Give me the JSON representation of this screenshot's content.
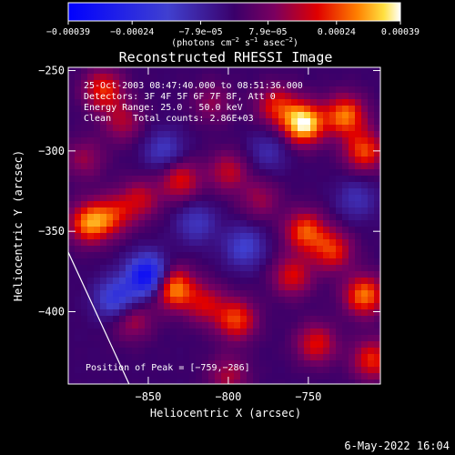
{
  "chart_data": {
    "type": "heatmap",
    "title": "Reconstructed RHESSI Image",
    "xlabel": "Heliocentric X (arcsec)",
    "ylabel": "Heliocentric Y (arcsec)",
    "xlim": [
      -900,
      -705
    ],
    "ylim": [
      -445,
      -248
    ],
    "x_ticks": [
      {
        "value": -850,
        "label": "−850"
      },
      {
        "value": -800,
        "label": "−800"
      },
      {
        "value": -750,
        "label": "−750"
      }
    ],
    "y_ticks": [
      {
        "value": -250,
        "label": "−250"
      },
      {
        "value": -300,
        "label": "−300"
      },
      {
        "value": -350,
        "label": "−350"
      },
      {
        "value": -400,
        "label": "−400"
      }
    ],
    "colorbar": {
      "range": [
        -0.00039,
        0.00039
      ],
      "ticks": [
        {
          "value": -0.00039,
          "label": "−0.00039"
        },
        {
          "value": -0.00024,
          "label": "−0.00024"
        },
        {
          "value": -7.9e-05,
          "label": "−7.9e−05"
        },
        {
          "value": 7.9e-05,
          "label": "7.9e−05"
        },
        {
          "value": 0.00024,
          "label": "0.00024"
        },
        {
          "value": 0.00039,
          "label": "0.00039"
        }
      ],
      "unit_label": {
        "base": "(photons cm",
        "sup1": "−2",
        "mid1": " s",
        "sup2": "−1",
        "mid2": " asec",
        "sup3": "−2",
        "end": ")"
      }
    },
    "info_lines": [
      "25-Oct-2003 08:47:40.000 to 08:51:36.000",
      "Detectors: 3F 4F 5F 6F 7F 8F, Att 0",
      "Energy Range: 25.0 - 50.0 keV",
      "Clean    Total counts: 2.86E+03"
    ],
    "peak_label": "Position of Peak = [−759,−286]",
    "peak": [
      -759,
      -286
    ],
    "limb_line": [
      [
        -900,
        -363
      ],
      [
        -862,
        -445
      ]
    ],
    "sources": [
      {
        "x": -753,
        "y": -283,
        "value": 0.00039
      },
      {
        "x": -727,
        "y": -278,
        "value": 0.00028
      },
      {
        "x": -715,
        "y": -300,
        "value": 0.00024
      },
      {
        "x": -770,
        "y": -272,
        "value": 0.0002
      },
      {
        "x": -878,
        "y": -262,
        "value": 0.00022
      },
      {
        "x": -866,
        "y": -282,
        "value": 0.00014
      },
      {
        "x": -887,
        "y": -345,
        "value": 0.00028
      },
      {
        "x": -872,
        "y": -340,
        "value": 0.00018
      },
      {
        "x": -830,
        "y": -318,
        "value": 0.0002
      },
      {
        "x": -800,
        "y": -313,
        "value": 0.00016
      },
      {
        "x": -855,
        "y": -330,
        "value": 0.00016
      },
      {
        "x": -835,
        "y": -385,
        "value": 0.00033
      },
      {
        "x": -815,
        "y": -395,
        "value": 0.00017
      },
      {
        "x": -860,
        "y": -405,
        "value": 0.00015
      },
      {
        "x": -795,
        "y": -405,
        "value": 0.00024
      },
      {
        "x": -752,
        "y": -350,
        "value": 0.00025
      },
      {
        "x": -735,
        "y": -362,
        "value": 0.00022
      },
      {
        "x": -760,
        "y": -378,
        "value": 0.00019
      },
      {
        "x": -715,
        "y": -390,
        "value": 0.00028
      },
      {
        "x": -745,
        "y": -420,
        "value": 0.0002
      },
      {
        "x": -710,
        "y": -430,
        "value": 0.00022
      },
      {
        "x": -800,
        "y": -440,
        "value": 0.00014
      },
      {
        "x": -780,
        "y": -330,
        "value": 0.00012
      },
      {
        "x": -810,
        "y": -270,
        "value": 0.00011
      },
      {
        "x": -890,
        "y": -305,
        "value": 0.00012
      },
      {
        "x": -850,
        "y": -378,
        "value": -0.00038
      },
      {
        "x": -870,
        "y": -392,
        "value": -0.00022
      },
      {
        "x": -840,
        "y": -300,
        "value": -0.00014
      },
      {
        "x": -790,
        "y": -360,
        "value": -0.00016
      },
      {
        "x": -820,
        "y": -345,
        "value": -0.00013
      },
      {
        "x": -720,
        "y": -330,
        "value": -0.00011
      },
      {
        "x": -775,
        "y": -300,
        "value": -0.0001
      }
    ]
  },
  "footer": {
    "date": "6-May-2022 16:04"
  }
}
